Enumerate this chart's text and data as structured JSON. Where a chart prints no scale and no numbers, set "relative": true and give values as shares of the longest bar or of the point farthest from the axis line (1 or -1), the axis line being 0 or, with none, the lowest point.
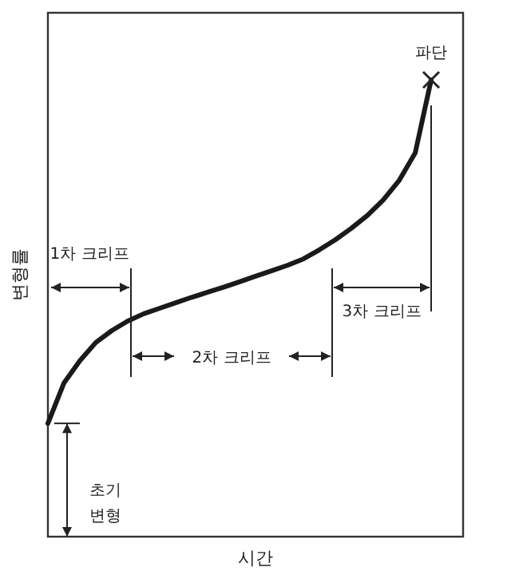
{
  "chart_data": {
    "type": "line",
    "relative": true,
    "xlabel": "시간",
    "ylabel": "변형률",
    "marker": "none",
    "line_style": "solid",
    "grid": false,
    "categories": [
      null,
      null,
      null,
      null,
      null,
      null,
      null,
      null,
      null,
      null,
      null,
      null,
      null,
      null,
      null,
      null,
      null,
      null,
      null,
      null,
      null,
      null,
      null,
      null,
      null
    ],
    "series": [
      {
        "color": "#1a1a1a",
        "values": [
          0.248,
          0.336,
          0.385,
          0.425,
          0.451,
          0.472,
          0.488,
          0.5,
          0.512,
          0.524,
          0.535,
          0.546,
          0.558,
          0.57,
          0.582,
          0.594,
          0.608,
          0.628,
          0.65,
          0.675,
          0.703,
          0.737,
          0.78,
          0.84,
          1.0
        ]
      }
    ],
    "annotations": [
      "1차 크리프",
      "2차 크리프",
      "3차 크리프",
      "초기\n변형",
      "파단"
    ]
  }
}
